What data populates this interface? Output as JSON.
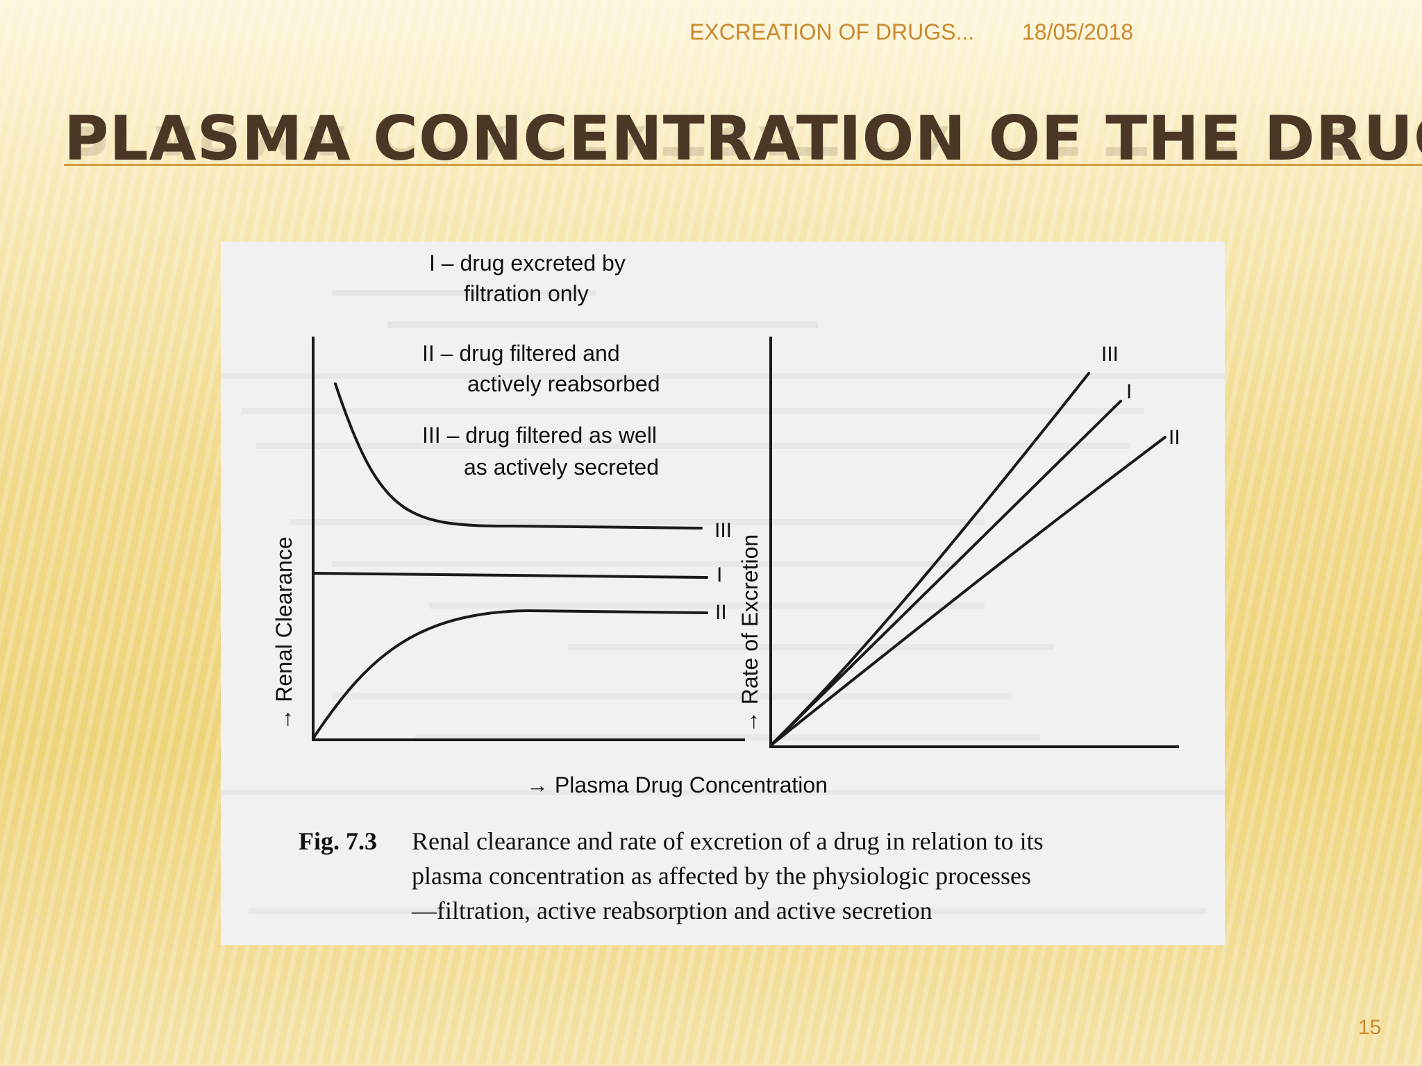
{
  "header": {
    "title": "EXCREATION OF DRUGS...",
    "date": "18/05/2018"
  },
  "slide": {
    "title": "PLASMA CONCENTRATION OF THE DRUG",
    "page_number": "15"
  },
  "figure": {
    "legend": {
      "I_line1": "I – drug excreted by",
      "I_line2": "filtration only",
      "II_line1": "II – drug filtered and",
      "II_line2": "actively reabsorbed",
      "III_line1": "III – drug filtered as well",
      "III_line2": "as actively secreted"
    },
    "left_ylabel": "→ Renal Clearance",
    "right_ylabel": "→ Rate of Excretion",
    "xlabel": "→ Plasma Drug Concentration",
    "curve_labels": {
      "I": "I",
      "II": "II",
      "III": "III"
    },
    "caption": {
      "fig_number": "Fig. 7.3",
      "line1": "Renal clearance and rate of excretion of a drug in relation to its",
      "line2": "plasma concentration as affected by the physiologic processes",
      "line3": "—filtration, active reabsorption and active secretion"
    }
  }
}
